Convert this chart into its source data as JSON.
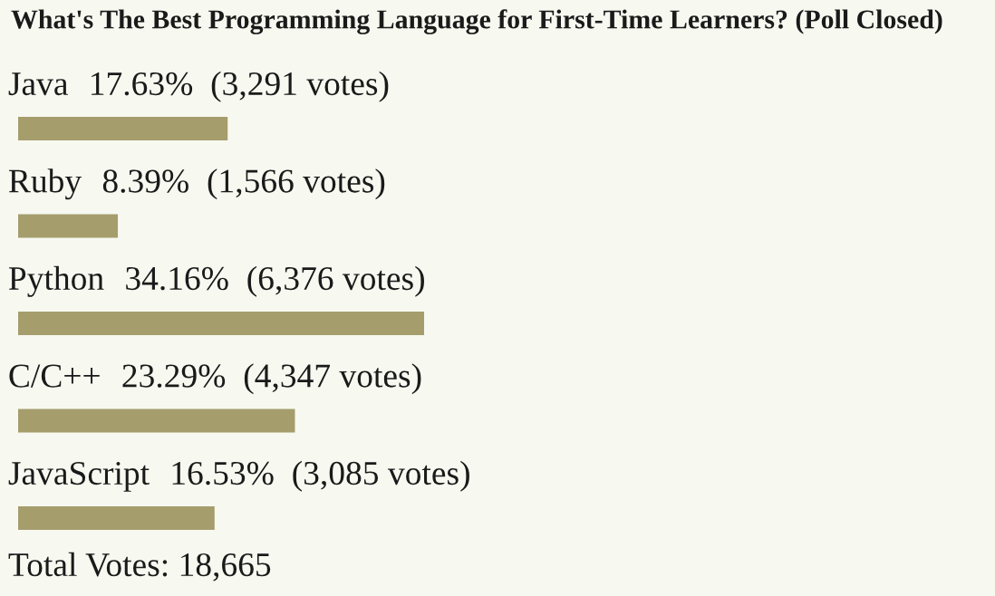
{
  "chart_data": {
    "type": "bar",
    "orientation": "horizontal",
    "title": "What's The Best Programming Language for First-Time Learners? (Poll Closed)",
    "categories": [
      "Java",
      "Ruby",
      "Python",
      "C/C++",
      "JavaScript"
    ],
    "values": [
      17.63,
      8.39,
      34.16,
      23.29,
      16.53
    ],
    "value_labels": [
      "17.63%  (3,291 votes)",
      "8.39%  (1,566 votes)",
      "34.16%  (6,376 votes)",
      "23.29%  (4,347 votes)",
      "16.53%  (3,085 votes)"
    ],
    "color": "#a69d6d",
    "annotations": [
      "Total Votes: 18,665"
    ]
  }
}
